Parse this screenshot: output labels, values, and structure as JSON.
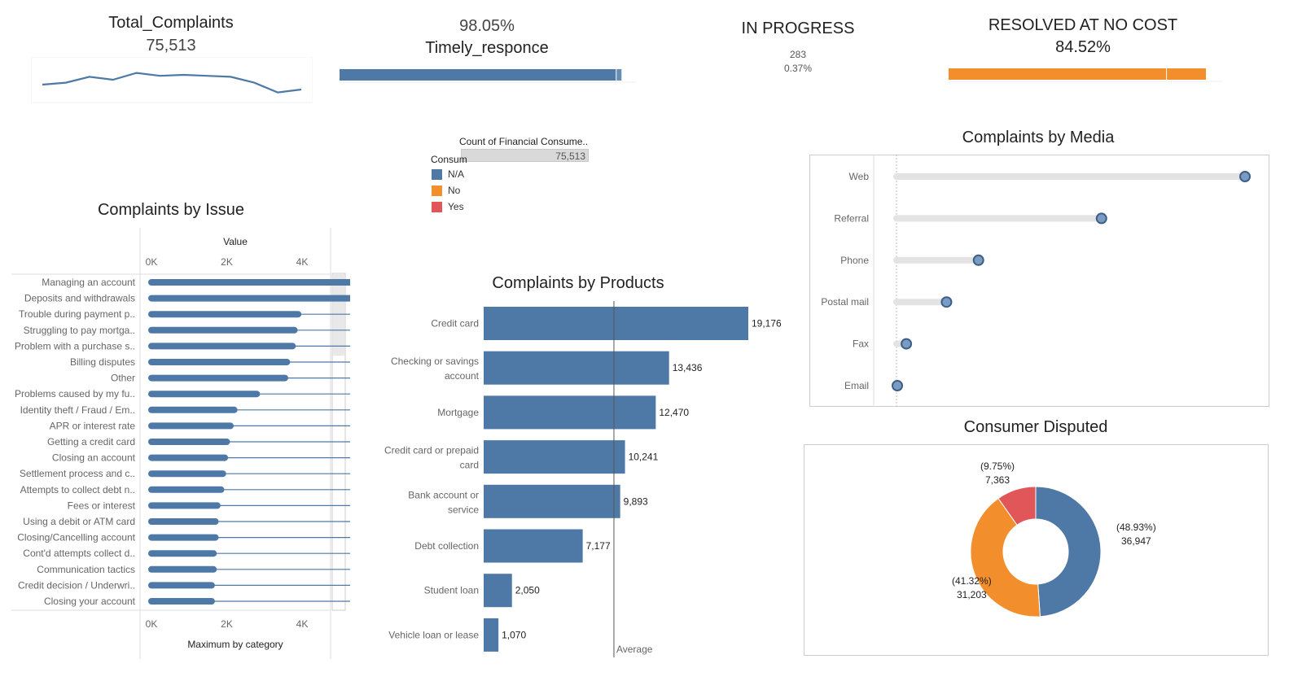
{
  "kpis": {
    "total": {
      "title": "Total_Complaints",
      "value": "75,513",
      "spark": [
        1,
        1.02,
        1.08,
        1.05,
        1.12,
        1.09,
        1.1,
        1.09,
        1.08,
        1.02,
        0.92,
        0.95
      ]
    },
    "timely": {
      "percent": "98.05%",
      "title": "Timely_responce",
      "fraction": 0.9805
    },
    "in_progress": {
      "title": "IN PROGRESS",
      "count": "283",
      "percent": "0.37%"
    },
    "resolved": {
      "title": "RESOLVED AT NO COST",
      "value": "84.52%",
      "fraction": 0.8452
    }
  },
  "legend": {
    "header": "Count of Financial Consume..",
    "total": "75,513",
    "subtitle": "Consum",
    "items": [
      {
        "label": "N/A",
        "color": "#4e79a7"
      },
      {
        "label": "No",
        "color": "#f28e2b"
      },
      {
        "label": "Yes",
        "color": "#e15759"
      }
    ]
  },
  "colors": {
    "blue": "#4e79a7",
    "orange": "#f28e2b",
    "red": "#e15759",
    "grey": "#e6e6e6"
  },
  "chart_data": [
    {
      "type": "bar",
      "title": "Complaints by Issue",
      "xlabel_top": "Value",
      "xlabel_bottom": "Maximum by category",
      "xticks": [
        "0K",
        "2K",
        "4K",
        "6K",
        "8K"
      ],
      "xlim": [
        0,
        9500
      ],
      "categories": [
        "Managing an account",
        "Deposits and withdrawals",
        "Trouble during payment p..",
        "Struggling to pay mortga..",
        "Problem with a purchase s..",
        "Billing disputes",
        "Other",
        "Problems caused by my fu..",
        "Identity theft / Fraud / Em..",
        "APR or interest rate",
        "Getting a credit card",
        "Closing an account",
        "Settlement process and c..",
        "Attempts to collect debt n..",
        "Fees or interest",
        "Using a debit or ATM card",
        "Closing/Cancelling account",
        "Cont'd attempts collect d..",
        "Communication tactics",
        "Credit decision / Underwri..",
        "Closing your account"
      ],
      "values": [
        9200,
        6500,
        3900,
        3800,
        3750,
        3600,
        3550,
        2800,
        2200,
        2100,
        2000,
        1950,
        1900,
        1850,
        1750,
        1700,
        1700,
        1650,
        1650,
        1600,
        1600
      ],
      "max_value": 9000
    },
    {
      "type": "bar",
      "title": "Complaints by Products",
      "categories": [
        "Credit card",
        "Checking or savings account",
        "Mortgage",
        "Credit card or prepaid card",
        "Bank account or service",
        "Debt collection",
        "Student loan",
        "Vehicle loan or lease"
      ],
      "values": [
        19176,
        13436,
        12470,
        10241,
        9893,
        7177,
        2050,
        1070
      ],
      "labels": [
        "19,176",
        "13,436",
        "12,470",
        "10,241",
        "9,893",
        "7,177",
        "2,050",
        "1,070"
      ],
      "reference_line": {
        "label": "Average",
        "value": 9439
      }
    },
    {
      "type": "scatter",
      "title": "Complaints by Media",
      "categories": [
        "Web",
        "Referral",
        "Phone",
        "Postal mail",
        "Fax",
        "Email"
      ],
      "values": [
        42500,
        25000,
        10000,
        6100,
        1200,
        100
      ]
    },
    {
      "type": "pie",
      "title": "Consumer Disputed",
      "slices": [
        {
          "name": "N/A",
          "value": 36947,
          "percent": "(48.93%)",
          "label": "36,947",
          "color": "#4e79a7"
        },
        {
          "name": "No",
          "value": 31203,
          "percent": "(41.32%)",
          "label": "31,203",
          "color": "#f28e2b"
        },
        {
          "name": "Yes",
          "value": 7363,
          "percent": "(9.75%)",
          "label": "7,363",
          "color": "#e15759"
        }
      ]
    }
  ]
}
